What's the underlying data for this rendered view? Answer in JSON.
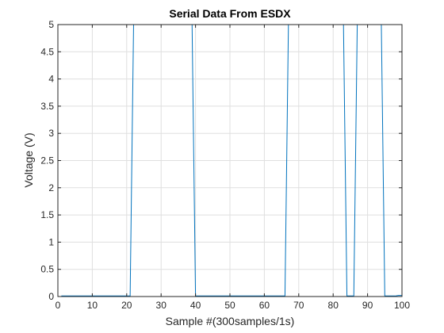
{
  "chart_data": {
    "type": "line",
    "title": "Serial Data From ESDX",
    "xlabel": "Sample #(300samples/1s)",
    "ylabel": "Voltage (V)",
    "xlim": [
      0,
      100
    ],
    "ylim": [
      0,
      5
    ],
    "xticks": [
      0,
      10,
      20,
      30,
      40,
      50,
      60,
      70,
      80,
      90,
      100
    ],
    "yticks": [
      0,
      0.5,
      1,
      1.5,
      2,
      2.5,
      3,
      3.5,
      4,
      4.5,
      5
    ],
    "xtick_labels": [
      "0",
      "10",
      "20",
      "30",
      "40",
      "50",
      "60",
      "70",
      "80",
      "90",
      "100"
    ],
    "ytick_labels": [
      "0",
      "0.5",
      "1",
      "1.5",
      "2",
      "2.5",
      "3",
      "3.5",
      "4",
      "4.5",
      "5"
    ],
    "grid": true,
    "colors": {
      "line": "#0072BD",
      "grid": "#dfdfdf",
      "axes": "#262626"
    },
    "series": [
      {
        "x": [
          1,
          21,
          22,
          39,
          40,
          66,
          67,
          83,
          84,
          86,
          87,
          94,
          95,
          98,
          99,
          100
        ],
        "y": [
          0.01,
          0.01,
          5,
          5,
          0.01,
          0.01,
          5,
          5,
          0.01,
          0.01,
          5,
          5,
          0.01,
          0.01,
          0.02,
          0.02
        ]
      }
    ]
  }
}
